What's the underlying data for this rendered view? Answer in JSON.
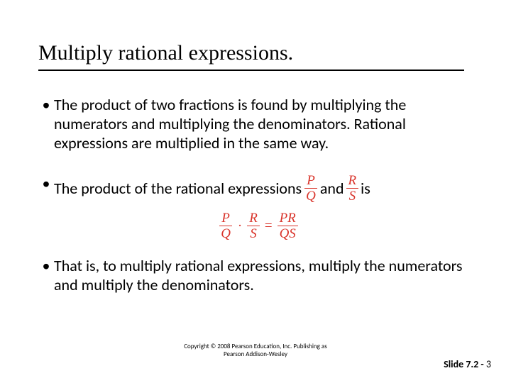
{
  "colors": {
    "accent_red": "#d9342b",
    "text": "#000000",
    "background": "#ffffff"
  },
  "typography": {
    "title_font": "Times New Roman",
    "title_size_pt": 30,
    "body_font": "Calibri",
    "body_size_pt": 22,
    "equation_font": "Times New Roman",
    "equation_size_pt": 19,
    "copyright_size_pt": 9,
    "slidenum_size_pt": 14
  },
  "title": "Multiply rational expressions.",
  "bullets": {
    "b1": "The product of two fractions is found by multiplying the numerators and multiplying the denominators.  Rational expressions are multiplied in the same way.",
    "b2_pre": "The product of the rational expressions",
    "b2_and": "  and",
    "b2_is": "  is",
    "b3": "That is, to multiply rational expressions, multiply the numerators and multiply the denominators."
  },
  "fractions": {
    "f1": {
      "num": "P",
      "den": "Q"
    },
    "f2": {
      "num": "R",
      "den": "S"
    },
    "prod": {
      "num": "PR",
      "den": "QS"
    }
  },
  "equation": {
    "dot": "·",
    "equals": "="
  },
  "copyright": {
    "line1": "Copyright © 2008 Pearson Education, Inc.  Publishing as",
    "line2": "Pearson Addison-Wesley"
  },
  "slide_number": {
    "prefix": "Slide 7.2 - ",
    "num": "3"
  }
}
